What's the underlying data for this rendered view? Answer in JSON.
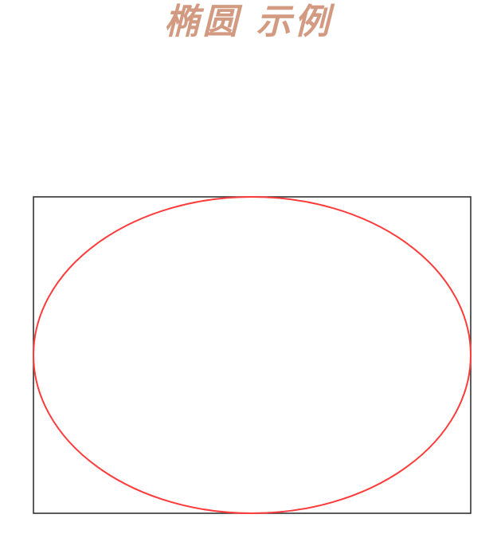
{
  "title": "椭圆 示例",
  "colors": {
    "title": "#d39a82",
    "rectangle_stroke": "#333333",
    "ellipse_stroke": "#ff3b3b",
    "background": "#ffffff"
  }
}
